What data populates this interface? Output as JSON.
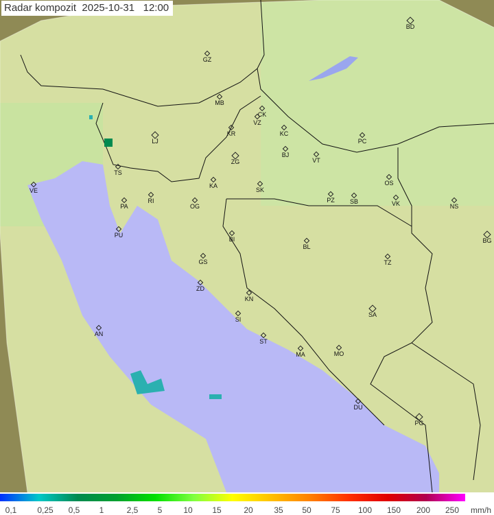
{
  "title": "Radar kompozit  2025-10-31   12:00",
  "colors": {
    "sea": "#b9b9f6",
    "land": "#cfe3a0",
    "outside": "#8f8a55",
    "border": "#111111"
  },
  "cities": [
    "BD",
    "GZ",
    "MB",
    "CK",
    "VZ",
    "KR",
    "KC",
    "PC",
    "LJ",
    "ZG",
    "BJ",
    "VT",
    "TS",
    "VE",
    "KA",
    "SK",
    "OS",
    "RI",
    "PA",
    "OG",
    "PZ",
    "SB",
    "VK",
    "NS",
    "PU",
    "BI",
    "BL",
    "BG",
    "GS",
    "TZ",
    "ZD",
    "KN",
    "SA",
    "SI",
    "AN",
    "ST",
    "MA",
    "MO",
    "DU",
    "PG"
  ],
  "legend": {
    "ticks": [
      "0,1",
      "0,25",
      "0,5",
      "1",
      "2,5",
      "5",
      "10",
      "15",
      "20",
      "35",
      "50",
      "75",
      "100",
      "150",
      "200",
      "250"
    ],
    "unit": "mm/h",
    "gradient": [
      "#0030ff",
      "#00c8c8",
      "#008a50",
      "#00a030",
      "#00e000",
      "#80ff40",
      "#ffff00",
      "#ffc000",
      "#ff8000",
      "#ff3000",
      "#e00000",
      "#b00050",
      "#ff00ff"
    ]
  }
}
